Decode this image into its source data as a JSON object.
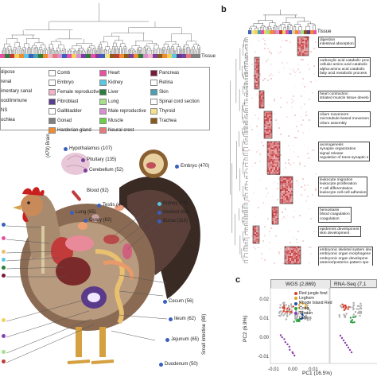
{
  "panel_labels": {
    "b": "b",
    "c": "c"
  },
  "tissue_label_a": "Tissue",
  "tissue_label_b": "Tissue",
  "legend": [
    {
      "label": "Adipose",
      "color": "#e8c9a0",
      "shown": "dipose"
    },
    {
      "label": "Adrenal",
      "color": "#ffffff",
      "shown": "renal"
    },
    {
      "label": "Alimentary canal",
      "color": "#3a5fbf",
      "shown": "imentary canal"
    },
    {
      "label": "Blood/immune",
      "color": "#c23b3b",
      "shown": "ood/immune"
    },
    {
      "label": "CNS",
      "color": "#7a3fa0",
      "shown": "NS"
    },
    {
      "label": "Cochlea",
      "color": "#f0d060",
      "shown": "ochlea"
    },
    {
      "label": "Comb",
      "color": "#ffffff",
      "shown": "Comb"
    },
    {
      "label": "Embryo",
      "color": "#ffffff",
      "shown": "Embryo"
    },
    {
      "label": "Female reproductive",
      "color": "#f2b2c8",
      "shown": "Female reproductive"
    },
    {
      "label": "Fibroblast",
      "color": "#5a3c8c",
      "shown": "Fibroblast"
    },
    {
      "label": "Gallbladder",
      "color": "#ffffff",
      "shown": "Gallbladder"
    },
    {
      "label": "Gonad",
      "color": "#808080",
      "shown": "Gonad"
    },
    {
      "label": "Harderian gland",
      "color": "#f28a2e",
      "shown": "Harderian gland"
    },
    {
      "label": "Heart",
      "color": "#e94fa4",
      "shown": "Heart"
    },
    {
      "label": "Kidney",
      "color": "#5ac8e0",
      "shown": "Kidney"
    },
    {
      "label": "Liver",
      "color": "#2a7d3a",
      "shown": "Liver"
    },
    {
      "label": "Lung",
      "color": "#a5e08a",
      "shown": "Lung"
    },
    {
      "label": "Male reproductive",
      "color": "#d890d0",
      "shown": "Male reproductive"
    },
    {
      "label": "Muscle",
      "color": "#6ad04a",
      "shown": "Muscle"
    },
    {
      "label": "Neural crest",
      "color": "#e67a7a",
      "shown": "Neural crest"
    },
    {
      "label": "Pancreas",
      "color": "#7a1a3a",
      "shown": "Pancreas"
    },
    {
      "label": "Retina",
      "color": "#ffffff",
      "shown": "Retina"
    },
    {
      "label": "Skin",
      "color": "#4aa0b0",
      "shown": "Skin"
    },
    {
      "label": "Spinal cord section",
      "color": "#ffffff",
      "shown": "Spinal cord section"
    },
    {
      "label": "Thyroid",
      "color": "#f4e38a",
      "shown": "Thyroid"
    },
    {
      "label": "Trachea",
      "color": "#8a5a1a",
      "shown": "Trachea"
    }
  ],
  "organs": {
    "hypothalamus": "Hypothalamus (107)",
    "pituitary": "Pituitary (135)",
    "cerebellum": "Cerebellum (52)",
    "brain": "(479) Brain",
    "blood": "Blood (92)",
    "embryo": "Embryo (470)",
    "testis": "Testis (44)",
    "lung": "Lung (65)",
    "ovary": "Ovary (82)",
    "kidney": "Kidney (78)",
    "oviduct": "Oviduct (68)",
    "bursa": "Bursa (115)",
    "cecum": "Cecum (56)",
    "ileum": "Ileum (62)",
    "jejunum": "Jejunum (65)",
    "duodenum": "Duodenum (50)",
    "small_intestine": "Small intestine (89)"
  },
  "go_terms": [
    [
      "digestion",
      "intestinal absorption"
    ],
    [
      "carboxylic acid catabolic proc",
      "cellular amino acid catabolic",
      "alpha-amino acid catabolic",
      "fatty acid metabolic process"
    ],
    [
      "heart contraction",
      "striated muscle tissue develo"
    ],
    [
      "cilium movement",
      "microtubule-based movemen",
      "cilium assembly"
    ],
    [
      "axonogenesis",
      "synapse organization",
      "signal release",
      "regulation of trans-synaptic s"
    ],
    [
      "leukocyte migration",
      "leukocyte proliferation",
      "T cell differentiation",
      "leukocyte cell-cell adhesion"
    ],
    [
      "hemostasis",
      "blood coagulation",
      "coagulation"
    ],
    [
      "epidermis development",
      "skin development"
    ],
    [
      "embryonic skeletal system dev",
      "embryonic organ morphogene",
      "embryonic organ developme",
      "anterior/posterior pattern spe"
    ]
  ],
  "chart_data": {
    "type": "scatter",
    "facets": [
      "WGS (2,869)",
      "RNA-Seq (7,1"
    ],
    "xlabel": "PC1 (16.5%)",
    "ylabel": "PC2 (6.9%)",
    "xticks": [
      "-0.01",
      "0.00",
      "0.01"
    ],
    "yticks": [
      "-0.01",
      "0.00",
      "0.01",
      "0.02"
    ],
    "series": [
      {
        "name": "Red jungle fowl",
        "color": "#d9402b"
      },
      {
        "name": "Leghorn",
        "color": "#e8a020"
      },
      {
        "name": "Rhode Island Red",
        "color": "#1f4fa0"
      },
      {
        "name": "Cobb",
        "color": "#2aa040"
      },
      {
        "name": "Tibetan",
        "color": "#8a3fb0"
      },
      {
        "name": "Others",
        "color": "#b0b0b0"
      }
    ]
  }
}
